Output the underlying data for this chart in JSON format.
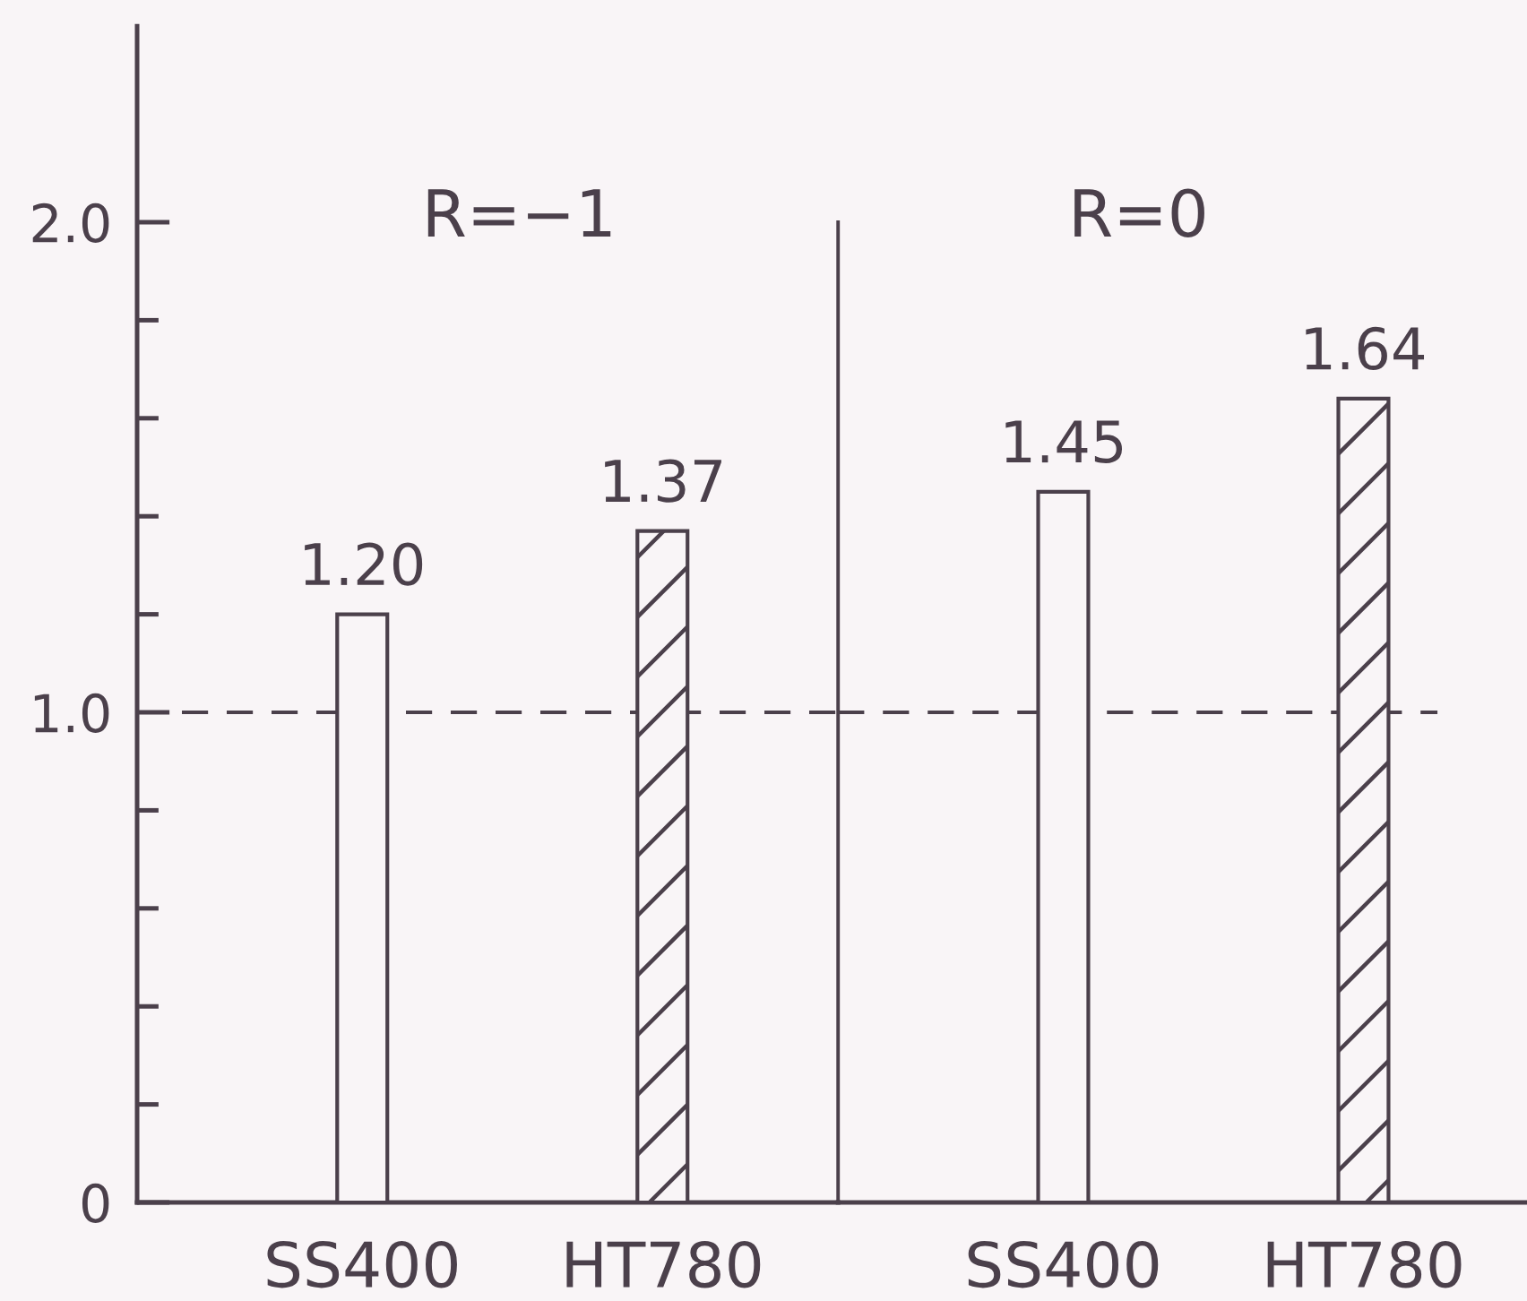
{
  "chart_data": [
    {
      "type": "bar",
      "title": "R=−1",
      "categories": [
        "SS400",
        "HT780"
      ],
      "values": [
        1.2,
        1.37
      ],
      "colors": [
        "#4b404b",
        "#4b404b"
      ],
      "value_labels": [
        "1.20",
        "1.37"
      ],
      "ylim": [
        0,
        2.4
      ],
      "yticks": [
        0,
        {
          "value": 0.2,
          "label": null
        },
        {
          "value": 0.4,
          "label": null
        },
        {
          "value": 0.6,
          "label": null
        },
        {
          "value": 0.8,
          "label": null
        },
        {
          "value": 1,
          "label": "1.0"
        },
        {
          "value": 1.2,
          "label": null
        },
        {
          "value": 1.4,
          "label": null
        },
        {
          "value": 1.6,
          "label": null
        },
        {
          "value": 1.8,
          "label": null
        },
        {
          "value": 2,
          "label": "2.0"
        }
      ],
      "ref_lines": [
        {
          "axis": "y",
          "value": 1,
          "line_style": "dashed",
          "color": "#4b404b"
        }
      ]
    },
    {
      "type": "bar",
      "title": "R=0",
      "categories": [
        "SS400",
        "HT780"
      ],
      "values": [
        1.45,
        1.64
      ],
      "colors": [
        "#4b404b",
        "#4b404b"
      ],
      "value_labels": [
        "1.45",
        "1.64"
      ],
      "ylim": [
        0,
        2.0
      ],
      "tick_labels": "x",
      "ref_lines": [
        {
          "axis": "y",
          "value": 1,
          "line_style": "dashed",
          "color": "#4b404b"
        }
      ]
    }
  ]
}
